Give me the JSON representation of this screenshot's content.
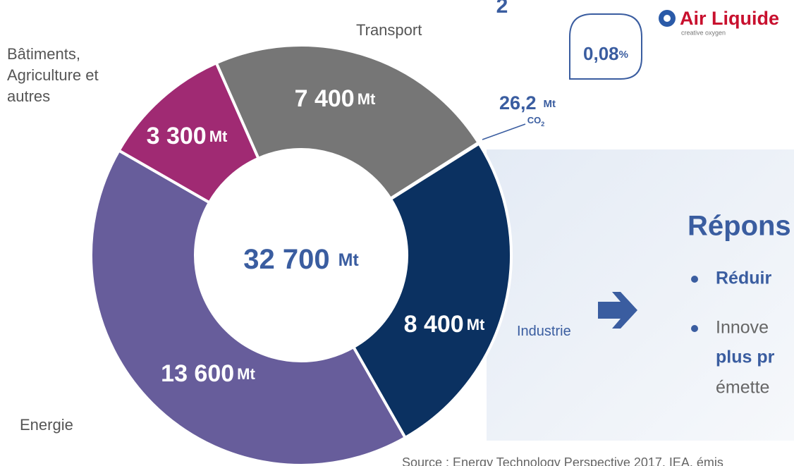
{
  "title_fragment": "2",
  "logo": {
    "name": "Air Liquide",
    "tagline": "creative oxygen"
  },
  "chart_data": {
    "type": "donut",
    "categories": [
      "Transport",
      null,
      "Industrie",
      "Energie",
      "Bâtiments, Agriculture et autres"
    ],
    "values": [
      7400,
      26.2,
      8400,
      13600,
      3300
    ],
    "value_labels": [
      "7 400",
      "26,2",
      "8 400",
      "13 600",
      "3 300"
    ],
    "colors": [
      "#767676",
      "#3a64a8",
      "#0b3161",
      "#675d9b",
      "#a02a73"
    ],
    "unit": "Mt",
    "co2": [
      "CO",
      "2"
    ],
    "total": {
      "value": 32700,
      "label": "32 700"
    },
    "share": {
      "value": 0.08,
      "label": "0,08"
    },
    "share_unit": "%"
  },
  "panel": {
    "heading": "Répons",
    "bullet_1": "Réduir",
    "bullet_2": [
      "Innove",
      "plus pr",
      "émette"
    ]
  },
  "source": "Source : Energy Technology Perspective 2017, IEA, émis"
}
